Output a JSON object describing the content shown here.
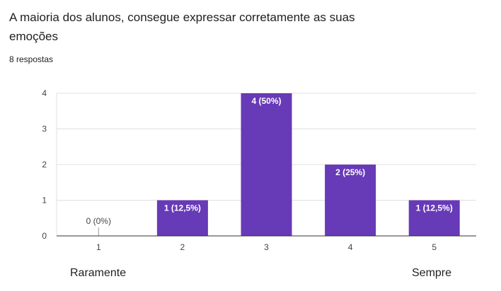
{
  "question": {
    "title": "A maioria dos alunos, consegue expressar corretamente as suas emoções",
    "response_count": "8 respostas"
  },
  "scale": {
    "low_label": "Raramente",
    "high_label": "Sempre"
  },
  "colors": {
    "bar": "#673ab7",
    "grid": "#e0e0e0",
    "axis": "#333333"
  },
  "chart_data": {
    "type": "bar",
    "title": "A maioria dos alunos, consegue expressar corretamente as suas emoções",
    "xlabel": "",
    "ylabel": "",
    "categories": [
      "1",
      "2",
      "3",
      "4",
      "5"
    ],
    "values": [
      0,
      1,
      4,
      2,
      1
    ],
    "data_labels": [
      "0 (0%)",
      "1 (12,5%)",
      "4 (50%)",
      "2 (25%)",
      "1 (12,5%)"
    ],
    "ylim": [
      0,
      4
    ],
    "yticks": [
      "0",
      "1",
      "2",
      "3",
      "4"
    ],
    "grid": true,
    "legend": "none"
  }
}
